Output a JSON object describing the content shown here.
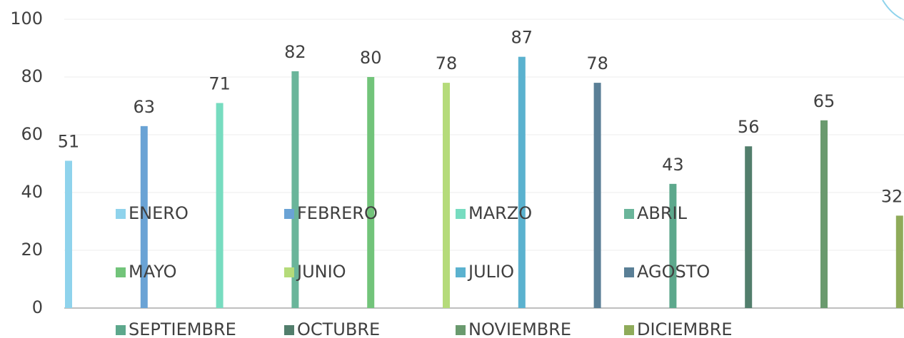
{
  "chart_data": {
    "type": "bar",
    "categories": [
      null
    ],
    "series": [
      {
        "name": "ENERO",
        "color": "#8fd3ec",
        "values": [
          51
        ]
      },
      {
        "name": "FEBRERO",
        "color": "#6aa3d5",
        "values": [
          63
        ]
      },
      {
        "name": "MARZO",
        "color": "#77dcc0",
        "values": [
          71
        ]
      },
      {
        "name": "ABRIL",
        "color": "#6ab59a",
        "values": [
          82
        ]
      },
      {
        "name": "MAYO",
        "color": "#72c47a",
        "values": [
          80
        ]
      },
      {
        "name": "JUNIO",
        "color": "#b5db7a",
        "values": [
          78
        ]
      },
      {
        "name": "JULIO",
        "color": "#5bb2cf",
        "values": [
          87
        ]
      },
      {
        "name": "AGOSTO",
        "color": "#5a7f96",
        "values": [
          78
        ]
      },
      {
        "name": "SEPTIEMBRE",
        "color": "#5da88c",
        "values": [
          43
        ]
      },
      {
        "name": "OCTUBRE",
        "color": "#527e6c",
        "values": [
          56
        ]
      },
      {
        "name": "NOVIEMBRE",
        "color": "#6a9a6e",
        "values": [
          65
        ]
      },
      {
        "name": "DICIEMBRE",
        "color": "#8fab5a",
        "values": [
          32
        ]
      }
    ],
    "ylim": [
      0,
      100
    ],
    "yticks": [
      0,
      20,
      40,
      60,
      80,
      100
    ],
    "grid": true
  }
}
